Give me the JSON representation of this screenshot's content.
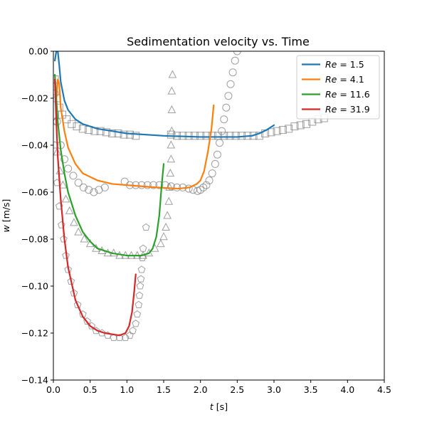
{
  "chart_data": {
    "type": "line",
    "title": "Sedimentation velocity vs. Time",
    "xlabel_var": "t",
    "xlabel_unit": " [s]",
    "ylabel_var": "w",
    "ylabel_unit": " [m/s]",
    "xlim": [
      0.0,
      4.5
    ],
    "ylim": [
      -0.14,
      0.0
    ],
    "xticks": [
      "0.0",
      "0.5",
      "1.0",
      "1.5",
      "2.0",
      "2.5",
      "3.0",
      "3.5",
      "4.0",
      "4.5"
    ],
    "yticks": [
      "0.00",
      "−0.02",
      "−0.04",
      "−0.06",
      "−0.08",
      "−0.10",
      "−0.12",
      "−0.14"
    ],
    "xtick_values": [
      0.0,
      0.5,
      1.0,
      1.5,
      2.0,
      2.5,
      3.0,
      3.5,
      4.0,
      4.5
    ],
    "ytick_values": [
      0.0,
      -0.02,
      -0.04,
      -0.06,
      -0.08,
      -0.1,
      -0.12,
      -0.14
    ],
    "grid": false,
    "legend_position": "top-right",
    "series": [
      {
        "name_prefix": "Re",
        "name_value": " = 1.5",
        "color": "#1f77b4",
        "line": [
          [
            0.02,
            -0.004
          ],
          [
            0.04,
            0.0
          ],
          [
            0.06,
            0.0
          ],
          [
            0.08,
            -0.006
          ],
          [
            0.1,
            -0.013
          ],
          [
            0.15,
            -0.021
          ],
          [
            0.2,
            -0.025
          ],
          [
            0.3,
            -0.029
          ],
          [
            0.4,
            -0.031
          ],
          [
            0.6,
            -0.033
          ],
          [
            0.8,
            -0.034
          ],
          [
            1.0,
            -0.035
          ],
          [
            1.5,
            -0.036
          ],
          [
            2.0,
            -0.0365
          ],
          [
            2.5,
            -0.0365
          ],
          [
            2.7,
            -0.036
          ],
          [
            2.8,
            -0.035
          ],
          [
            2.9,
            -0.0335
          ],
          [
            3.0,
            -0.0315
          ]
        ],
        "marker": "square",
        "markers": [
          [
            0.02,
            -0.012
          ],
          [
            0.05,
            -0.02
          ],
          [
            0.08,
            -0.024
          ],
          [
            0.12,
            -0.027
          ],
          [
            0.18,
            -0.029
          ],
          [
            0.25,
            -0.031
          ],
          [
            0.32,
            -0.032
          ],
          [
            0.4,
            -0.033
          ],
          [
            0.48,
            -0.0335
          ],
          [
            0.56,
            -0.034
          ],
          [
            0.64,
            -0.034
          ],
          [
            0.72,
            -0.0345
          ],
          [
            0.8,
            -0.035
          ],
          [
            0.88,
            -0.035
          ],
          [
            0.96,
            -0.0355
          ],
          [
            1.04,
            -0.0355
          ],
          [
            1.12,
            -0.036
          ],
          [
            1.6,
            -0.0355
          ],
          [
            1.68,
            -0.036
          ],
          [
            1.76,
            -0.036
          ],
          [
            1.84,
            -0.036
          ],
          [
            1.92,
            -0.036
          ],
          [
            2.0,
            -0.036
          ],
          [
            2.08,
            -0.036
          ],
          [
            2.16,
            -0.036
          ],
          [
            2.24,
            -0.036
          ],
          [
            2.32,
            -0.036
          ],
          [
            2.4,
            -0.036
          ],
          [
            2.48,
            -0.036
          ],
          [
            2.56,
            -0.036
          ],
          [
            2.64,
            -0.036
          ],
          [
            2.72,
            -0.036
          ],
          [
            2.8,
            -0.036
          ],
          [
            2.88,
            -0.035
          ],
          [
            2.96,
            -0.0345
          ],
          [
            3.04,
            -0.034
          ],
          [
            3.12,
            -0.0335
          ],
          [
            3.2,
            -0.033
          ],
          [
            3.28,
            -0.032
          ],
          [
            3.36,
            -0.0315
          ],
          [
            3.44,
            -0.031
          ],
          [
            3.52,
            -0.03
          ],
          [
            3.6,
            -0.029
          ],
          [
            3.68,
            -0.0285
          ]
        ]
      },
      {
        "name_prefix": "Re",
        "name_value": " = 4.1",
        "color": "#ff7f0e",
        "line": [
          [
            0.04,
            -0.02
          ],
          [
            0.06,
            -0.012
          ],
          [
            0.08,
            -0.014
          ],
          [
            0.1,
            -0.024
          ],
          [
            0.15,
            -0.034
          ],
          [
            0.2,
            -0.041
          ],
          [
            0.3,
            -0.048
          ],
          [
            0.4,
            -0.052
          ],
          [
            0.6,
            -0.055
          ],
          [
            0.8,
            -0.0565
          ],
          [
            1.0,
            -0.057
          ],
          [
            1.4,
            -0.058
          ],
          [
            1.7,
            -0.0585
          ],
          [
            1.85,
            -0.058
          ],
          [
            1.95,
            -0.0565
          ],
          [
            2.0,
            -0.055
          ],
          [
            2.05,
            -0.051
          ],
          [
            2.1,
            -0.043
          ],
          [
            2.15,
            -0.033
          ],
          [
            2.18,
            -0.023
          ]
        ],
        "marker": "circle",
        "markers": [
          [
            0.02,
            -0.018
          ],
          [
            0.05,
            -0.03
          ],
          [
            0.1,
            -0.04
          ],
          [
            0.15,
            -0.046
          ],
          [
            0.2,
            -0.05
          ],
          [
            0.27,
            -0.053
          ],
          [
            0.34,
            -0.056
          ],
          [
            0.41,
            -0.058
          ],
          [
            0.48,
            -0.059
          ],
          [
            0.55,
            -0.06
          ],
          [
            0.62,
            -0.059
          ],
          [
            0.7,
            -0.058
          ],
          [
            0.97,
            -0.0555
          ],
          [
            1.04,
            -0.057
          ],
          [
            1.12,
            -0.057
          ],
          [
            1.2,
            -0.057
          ],
          [
            1.28,
            -0.057
          ],
          [
            1.36,
            -0.057
          ],
          [
            1.44,
            -0.057
          ],
          [
            1.52,
            -0.057
          ],
          [
            1.6,
            -0.0575
          ],
          [
            1.68,
            -0.058
          ],
          [
            1.76,
            -0.058
          ],
          [
            1.84,
            -0.0585
          ],
          [
            1.9,
            -0.059
          ],
          [
            1.96,
            -0.0595
          ],
          [
            2.0,
            -0.059
          ],
          [
            2.04,
            -0.058
          ],
          [
            2.08,
            -0.057
          ],
          [
            2.12,
            -0.055
          ],
          [
            2.16,
            -0.052
          ],
          [
            2.2,
            -0.048
          ],
          [
            2.23,
            -0.044
          ],
          [
            2.26,
            -0.039
          ],
          [
            2.29,
            -0.034
          ],
          [
            2.32,
            -0.029
          ],
          [
            2.35,
            -0.024
          ],
          [
            2.38,
            -0.019
          ],
          [
            2.41,
            -0.014
          ],
          [
            2.44,
            -0.009
          ],
          [
            2.47,
            -0.004
          ],
          [
            2.5,
            0.0
          ]
        ]
      },
      {
        "name_prefix": "Re",
        "name_value": " = 11.6",
        "color": "#2ca02c",
        "line": [
          [
            0.02,
            -0.01
          ],
          [
            0.04,
            -0.02
          ],
          [
            0.06,
            -0.03
          ],
          [
            0.1,
            -0.042
          ],
          [
            0.15,
            -0.052
          ],
          [
            0.2,
            -0.06
          ],
          [
            0.3,
            -0.07
          ],
          [
            0.4,
            -0.077
          ],
          [
            0.5,
            -0.081
          ],
          [
            0.6,
            -0.084
          ],
          [
            0.8,
            -0.086
          ],
          [
            1.0,
            -0.087
          ],
          [
            1.2,
            -0.087
          ],
          [
            1.3,
            -0.086
          ],
          [
            1.35,
            -0.084
          ],
          [
            1.4,
            -0.079
          ],
          [
            1.44,
            -0.07
          ],
          [
            1.47,
            -0.058
          ],
          [
            1.5,
            -0.048
          ]
        ],
        "marker": "triangle",
        "markers": [
          [
            0.02,
            -0.03
          ],
          [
            0.05,
            -0.043
          ],
          [
            0.09,
            -0.051
          ],
          [
            0.13,
            -0.057
          ],
          [
            0.17,
            -0.063
          ],
          [
            0.22,
            -0.068
          ],
          [
            0.28,
            -0.073
          ],
          [
            0.34,
            -0.077
          ],
          [
            0.42,
            -0.08
          ],
          [
            0.5,
            -0.082
          ],
          [
            0.58,
            -0.084
          ],
          [
            0.66,
            -0.085
          ],
          [
            0.74,
            -0.086
          ],
          [
            0.82,
            -0.086
          ],
          [
            0.9,
            -0.087
          ],
          [
            0.98,
            -0.087
          ],
          [
            1.06,
            -0.087
          ],
          [
            1.14,
            -0.087
          ],
          [
            1.22,
            -0.087
          ],
          [
            1.3,
            -0.086
          ],
          [
            1.38,
            -0.084
          ],
          [
            1.46,
            -0.082
          ],
          [
            1.5,
            -0.079
          ],
          [
            1.53,
            -0.075
          ],
          [
            1.55,
            -0.07
          ],
          [
            1.57,
            -0.064
          ],
          [
            1.58,
            -0.058
          ],
          [
            1.59,
            -0.052
          ],
          [
            1.6,
            -0.046
          ],
          [
            1.6,
            -0.04
          ],
          [
            1.61,
            -0.034
          ],
          [
            1.61,
            -0.025
          ],
          [
            1.61,
            -0.017
          ],
          [
            1.62,
            -0.01
          ]
        ]
      },
      {
        "name_prefix": "Re",
        "name_value": " = 31.9",
        "color": "#d62728",
        "line": [
          [
            0.02,
            -0.012
          ],
          [
            0.04,
            -0.03
          ],
          [
            0.06,
            -0.045
          ],
          [
            0.1,
            -0.063
          ],
          [
            0.15,
            -0.08
          ],
          [
            0.2,
            -0.092
          ],
          [
            0.3,
            -0.106
          ],
          [
            0.4,
            -0.113
          ],
          [
            0.5,
            -0.117
          ],
          [
            0.6,
            -0.119
          ],
          [
            0.7,
            -0.12
          ],
          [
            0.8,
            -0.1205
          ],
          [
            0.9,
            -0.121
          ],
          [
            0.98,
            -0.12
          ],
          [
            1.03,
            -0.117
          ],
          [
            1.07,
            -0.111
          ],
          [
            1.1,
            -0.102
          ],
          [
            1.12,
            -0.095
          ]
        ],
        "marker": "pentagon",
        "markers": [
          [
            0.02,
            -0.04
          ],
          [
            0.05,
            -0.056
          ],
          [
            0.08,
            -0.066
          ],
          [
            0.11,
            -0.074
          ],
          [
            0.14,
            -0.08
          ],
          [
            0.17,
            -0.087
          ],
          [
            0.2,
            -0.093
          ],
          [
            0.24,
            -0.098
          ],
          [
            0.28,
            -0.103
          ],
          [
            0.33,
            -0.108
          ],
          [
            0.4,
            -0.112
          ],
          [
            0.46,
            -0.115
          ],
          [
            0.52,
            -0.117
          ],
          [
            0.58,
            -0.119
          ],
          [
            0.66,
            -0.12
          ],
          [
            0.74,
            -0.121
          ],
          [
            0.82,
            -0.122
          ],
          [
            0.9,
            -0.122
          ],
          [
            0.98,
            -0.122
          ],
          [
            1.04,
            -0.121
          ],
          [
            1.08,
            -0.119
          ],
          [
            1.12,
            -0.116
          ],
          [
            1.14,
            -0.112
          ],
          [
            1.16,
            -0.108
          ],
          [
            1.17,
            -0.104
          ],
          [
            1.18,
            -0.1
          ],
          [
            1.19,
            -0.097
          ],
          [
            1.2,
            -0.093
          ],
          [
            1.21,
            -0.088
          ],
          [
            1.22,
            -0.084
          ],
          [
            1.26,
            -0.075
          ]
        ]
      }
    ]
  }
}
